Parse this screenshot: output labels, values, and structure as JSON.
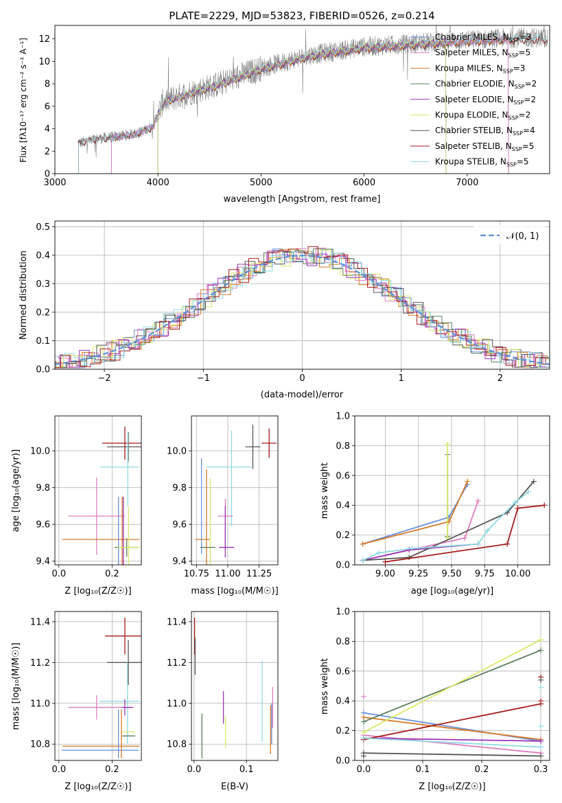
{
  "colors": {
    "chabrier_miles": "#6a8fd8",
    "salpeter_miles": "#e07bbf",
    "kroupa_miles": "#d87a2a",
    "chabrier_elodie": "#5d7f5d",
    "salpeter_elodie": "#9b34b8",
    "kroupa_elodie": "#d9e86a",
    "chabrier_stelib": "#555555",
    "salpeter_stelib": "#a31a1a",
    "kroupa_stelib": "#8fd9e0",
    "data_spectrum": "#808080"
  },
  "chart_data": [
    {
      "id": "spectrum",
      "type": "line",
      "title": "PLATE=2229, MJD=53823, FIBERID=0526, z=0.214",
      "xlabel": "wavelength [Angstrom, rest frame]",
      "ylabel": "Flux [fλ10⁻¹⁷ erg cm⁻² s⁻¹ A⁻¹]",
      "xlim": [
        3000,
        7800
      ],
      "ylim": [
        0,
        13.2
      ],
      "xticks": [
        "3000",
        "4000",
        "5000",
        "6000",
        "7000"
      ],
      "yticks": [
        "0",
        "2",
        "4",
        "6",
        "8",
        "10",
        "12"
      ],
      "legend_position": "right",
      "legend": [
        {
          "label": "Chabrier MILES, N",
          "sub": "SSP",
          "suffix": "=3",
          "color": "chabrier_miles"
        },
        {
          "label": "Salpeter MILES, N",
          "sub": "SSP",
          "suffix": "=5",
          "color": "salpeter_miles"
        },
        {
          "label": "Kroupa MILES, N",
          "sub": "SSP",
          "suffix": "=3",
          "color": "kroupa_miles"
        },
        {
          "label": "Chabrier ELODIE, N",
          "sub": "SSP",
          "suffix": "=2",
          "color": "chabrier_elodie"
        },
        {
          "label": "Salpeter ELODIE, N",
          "sub": "SSP",
          "suffix": "=2",
          "color": "salpeter_elodie"
        },
        {
          "label": "Kroupa ELODIE, N",
          "sub": "SSP",
          "suffix": "=2",
          "color": "kroupa_elodie"
        },
        {
          "label": "Chabrier STELIB, N",
          "sub": "SSP",
          "suffix": "=4",
          "color": "chabrier_stelib"
        },
        {
          "label": "Salpeter STELIB, N",
          "sub": "SSP",
          "suffix": "=5",
          "color": "salpeter_stelib"
        },
        {
          "label": "Kroupa STELIB, N",
          "sub": "SSP",
          "suffix": "=5",
          "color": "kroupa_stelib"
        }
      ],
      "continuum_anchors": [
        [
          3220,
          2.7
        ],
        [
          3400,
          3.1
        ],
        [
          3600,
          3.3
        ],
        [
          3800,
          3.6
        ],
        [
          3950,
          4.2
        ],
        [
          4050,
          6.4
        ],
        [
          4300,
          7.2
        ],
        [
          4600,
          8.0
        ],
        [
          5000,
          9.4
        ],
        [
          5500,
          10.6
        ],
        [
          6000,
          11.3
        ],
        [
          6500,
          11.6
        ],
        [
          7000,
          11.9
        ],
        [
          7500,
          12.1
        ]
      ],
      "model_starts": {
        "salpeter_stelib": 3230,
        "kroupa_stelib": 3230,
        "chabrier_stelib": 3230,
        "kroupa_miles": 3550,
        "salpeter_miles": 3550,
        "chabrier_miles": 3550,
        "kroupa_elodie": 4000,
        "salpeter_elodie": 4000,
        "chabrier_elodie": 4000
      }
    },
    {
      "id": "residuals",
      "type": "step",
      "xlabel": "(data-model)/error",
      "ylabel": "Normed distribution",
      "xlim": [
        -2.5,
        2.5
      ],
      "ylim": [
        0,
        0.52
      ],
      "xticks": [
        "−2",
        "−1",
        "0",
        "1",
        "2"
      ],
      "yticks": [
        "0.0",
        "0.1",
        "0.2",
        "0.3",
        "0.4",
        "0.5"
      ],
      "legend_position": "upper-right",
      "normal_label": "𝒩(0, 1)",
      "normal_color": "#5b8fd8"
    },
    {
      "id": "z-age",
      "type": "errorbar",
      "xlabel": "Z [log₁₀(Z/Z☉)]",
      "ylabel": "age  [log₁₀(age/yr)]",
      "xlim": [
        -0.015,
        0.31
      ],
      "ylim": [
        9.38,
        10.19
      ],
      "xticks": [
        0.0,
        0.2
      ],
      "yticks": [
        9.4,
        9.6,
        9.8,
        10.0
      ],
      "points": [
        {
          "x": 0.248,
          "xerr": 0.085,
          "y": 10.042,
          "yerr": 0.09,
          "color": "salpeter_stelib"
        },
        {
          "x": 0.261,
          "xerr": 0.08,
          "y": 10.022,
          "yerr": 0.08,
          "color": "chabrier_stelib"
        },
        {
          "x": 0.255,
          "xerr": 0.045,
          "y": 9.475,
          "yerr": 0.05,
          "color": "chabrier_elodie"
        },
        {
          "x": 0.228,
          "xerr": 0.075,
          "y": 9.912,
          "yerr": 0.0,
          "color": "kroupa_stelib"
        },
        {
          "x": 0.259,
          "xerr": 0.0,
          "y": 9.9,
          "yerr": 0.2,
          "color": "kroupa_stelib"
        },
        {
          "x": 0.142,
          "xerr": 0.105,
          "y": 9.645,
          "yerr": 0.21,
          "color": "salpeter_miles"
        },
        {
          "x": 0.158,
          "xerr": 0.145,
          "y": 9.518,
          "yerr": 0.0,
          "color": "kroupa_miles"
        },
        {
          "x": 0.224,
          "xerr": 0.0,
          "y": 9.55,
          "yerr": 0.2,
          "color": "chabrier_miles"
        },
        {
          "x": 0.238,
          "xerr": 0.0,
          "y": 9.55,
          "yerr": 0.2,
          "color": "kroupa_miles"
        },
        {
          "x": 0.242,
          "xerr": 0.0,
          "y": 9.55,
          "yerr": 0.2,
          "color": "salpeter_elodie"
        },
        {
          "x": 0.262,
          "xerr": 0.04,
          "y": 9.475,
          "yerr": 0.22,
          "color": "kroupa_elodie"
        }
      ]
    },
    {
      "id": "mass-age",
      "type": "errorbar",
      "xlabel": "mass [log₁₀(M/M☉)]",
      "ylabel": "",
      "xlim": [
        10.71,
        11.4
      ],
      "ylim": [
        9.38,
        10.19
      ],
      "xticks": [
        10.75,
        11.0,
        11.25
      ],
      "yticks": [
        9.4,
        9.6,
        9.8,
        10.0
      ],
      "points": [
        {
          "x": 11.33,
          "xerr": 0.06,
          "y": 10.042,
          "yerr": 0.08,
          "color": "salpeter_stelib"
        },
        {
          "x": 11.2,
          "xerr": 0.06,
          "y": 10.022,
          "yerr": 0.12,
          "color": "chabrier_stelib"
        },
        {
          "x": 11.01,
          "xerr": 0.18,
          "y": 9.912,
          "yerr": 0.0,
          "color": "kroupa_stelib"
        },
        {
          "x": 11.03,
          "xerr": 0.0,
          "y": 9.85,
          "yerr": 0.26,
          "color": "kroupa_stelib"
        },
        {
          "x": 10.98,
          "xerr": 0.06,
          "y": 9.645,
          "yerr": 0.0,
          "color": "salpeter_miles"
        },
        {
          "x": 10.98,
          "xerr": 0.0,
          "y": 9.6,
          "yerr": 0.14,
          "color": "salpeter_miles"
        },
        {
          "x": 10.79,
          "xerr": 0.0,
          "y": 9.7,
          "yerr": 0.26,
          "color": "chabrier_miles"
        },
        {
          "x": 10.8,
          "xerr": 0.06,
          "y": 9.518,
          "yerr": 0.0,
          "color": "kroupa_miles"
        },
        {
          "x": 10.83,
          "xerr": 0.0,
          "y": 9.6,
          "yerr": 0.3,
          "color": "kroupa_miles"
        },
        {
          "x": 10.86,
          "xerr": 0.0,
          "y": 9.6,
          "yerr": 0.25,
          "color": "kroupa_elodie"
        },
        {
          "x": 10.84,
          "xerr": 0.06,
          "y": 9.475,
          "yerr": 0.0,
          "color": "chabrier_elodie"
        },
        {
          "x": 10.99,
          "xerr": 0.06,
          "y": 9.475,
          "yerr": 0.0,
          "color": "salpeter_elodie"
        },
        {
          "x": 10.98,
          "xerr": 0.0,
          "y": 9.56,
          "yerr": 0.14,
          "color": "salpeter_elodie"
        }
      ]
    },
    {
      "id": "age-weight",
      "type": "line",
      "xlabel": "age  [log₁₀(age/yr)]",
      "ylabel": "mass weight",
      "xlim": [
        8.77,
        10.24
      ],
      "ylim": [
        0,
        1.0
      ],
      "xticks": [
        9.0,
        9.25,
        9.5,
        9.75,
        10.0
      ],
      "yticks": [
        0.0,
        0.2,
        0.4,
        0.6,
        0.8,
        1.0
      ],
      "series": [
        {
          "color": "chabrier_miles",
          "points": [
            [
              8.83,
              0.14
            ],
            [
              9.48,
              0.32
            ],
            [
              9.62,
              0.54
            ]
          ]
        },
        {
          "color": "kroupa_miles",
          "points": [
            [
              8.83,
              0.14
            ],
            [
              9.48,
              0.29
            ],
            [
              9.62,
              0.56
            ]
          ]
        },
        {
          "color": "salpeter_miles",
          "points": [
            [
              8.83,
              0.03
            ],
            [
              9.6,
              0.18
            ],
            [
              9.7,
              0.43
            ]
          ]
        },
        {
          "color": "chabrier_elodie",
          "points": [
            [
              9.47,
              0.19
            ],
            [
              9.47,
              0.74
            ]
          ]
        },
        {
          "color": "kroupa_elodie",
          "points": [
            [
              9.47,
              0.18
            ],
            [
              9.47,
              0.81
            ]
          ]
        },
        {
          "color": "salpeter_elodie",
          "points": [
            [
              8.83,
              0.03
            ],
            [
              9.18,
              0.1
            ],
            [
              9.7,
              0.14
            ]
          ]
        },
        {
          "color": "chabrier_stelib",
          "points": [
            [
              8.83,
              0.03
            ],
            [
              9.18,
              0.05
            ],
            [
              9.92,
              0.35
            ],
            [
              10.12,
              0.56
            ]
          ]
        },
        {
          "color": "salpeter_stelib",
          "points": [
            [
              9.0,
              0.02
            ],
            [
              9.92,
              0.14
            ],
            [
              10.0,
              0.38
            ],
            [
              10.2,
              0.4
            ]
          ]
        },
        {
          "color": "kroupa_stelib",
          "points": [
            [
              8.83,
              0.03
            ],
            [
              8.95,
              0.08
            ],
            [
              9.2,
              0.11
            ],
            [
              9.7,
              0.14
            ],
            [
              9.77,
              0.23
            ],
            [
              9.98,
              0.42
            ],
            [
              10.08,
              0.49
            ]
          ]
        }
      ]
    },
    {
      "id": "z-mass",
      "type": "errorbar",
      "xlabel": "Z [log₁₀(Z/Z☉)]",
      "ylabel": "mass [log₁₀(M/M☉)]",
      "xlim": [
        -0.015,
        0.31
      ],
      "ylim": [
        10.72,
        11.45
      ],
      "xticks": [
        0.0,
        0.2
      ],
      "yticks": [
        10.8,
        11.0,
        11.2,
        11.4
      ],
      "points": [
        {
          "x": 0.248,
          "xerr": 0.075,
          "y": 11.33,
          "yerr": 0.09,
          "color": "salpeter_stelib"
        },
        {
          "x": 0.261,
          "xerr": 0.08,
          "y": 11.2,
          "yerr": 0.11,
          "color": "chabrier_stelib"
        },
        {
          "x": 0.228,
          "xerr": 0.075,
          "y": 11.01,
          "yerr": 0.0,
          "color": "kroupa_stelib"
        },
        {
          "x": 0.258,
          "xerr": 0.0,
          "y": 11.0,
          "yerr": 0.2,
          "color": "kroupa_stelib"
        },
        {
          "x": 0.142,
          "xerr": 0.105,
          "y": 10.98,
          "yerr": 0.06,
          "color": "salpeter_miles"
        },
        {
          "x": 0.158,
          "xerr": 0.145,
          "y": 10.79,
          "yerr": 0.0,
          "color": "kroupa_miles"
        },
        {
          "x": 0.155,
          "xerr": 0.145,
          "y": 10.77,
          "yerr": 0.0,
          "color": "chabrier_miles"
        },
        {
          "x": 0.224,
          "xerr": 0.0,
          "y": 10.85,
          "yerr": 0.12,
          "color": "chabrier_miles"
        },
        {
          "x": 0.235,
          "xerr": 0.0,
          "y": 10.85,
          "yerr": 0.12,
          "color": "kroupa_miles"
        },
        {
          "x": 0.262,
          "xerr": 0.025,
          "y": 10.86,
          "yerr": 0.0,
          "color": "kroupa_elodie"
        },
        {
          "x": 0.262,
          "xerr": 0.025,
          "y": 10.84,
          "yerr": 0.0,
          "color": "chabrier_elodie"
        },
        {
          "x": 0.258,
          "xerr": 0.022,
          "y": 10.98,
          "yerr": 0.0,
          "color": "salpeter_elodie"
        },
        {
          "x": 0.248,
          "xerr": 0.0,
          "y": 10.98,
          "yerr": 0.04,
          "color": "salpeter_elodie"
        }
      ]
    },
    {
      "id": "ebv-mass",
      "type": "errorbar",
      "xlabel": "E(B-V)",
      "ylabel": "",
      "xlim": [
        -0.005,
        0.16
      ],
      "ylim": [
        10.72,
        11.45
      ],
      "xticks": [
        0.0,
        0.1
      ],
      "yticks": [
        10.8,
        11.0,
        11.2,
        11.4
      ],
      "points": [
        {
          "x": 0.001,
          "xerr": 0.0,
          "y": 11.33,
          "yerr": 0.09,
          "color": "salpeter_stelib"
        },
        {
          "x": 0.002,
          "xerr": 0.0,
          "y": 11.23,
          "yerr": 0.09,
          "color": "chabrier_stelib"
        },
        {
          "x": 0.015,
          "xerr": 0.0,
          "y": 10.84,
          "yerr": 0.11,
          "color": "chabrier_elodie"
        },
        {
          "x": 0.056,
          "xerr": 0.0,
          "y": 10.98,
          "yerr": 0.08,
          "color": "salpeter_elodie"
        },
        {
          "x": 0.06,
          "xerr": 0.0,
          "y": 10.86,
          "yerr": 0.08,
          "color": "kroupa_elodie"
        },
        {
          "x": 0.13,
          "xerr": 0.0,
          "y": 11.01,
          "yerr": 0.2,
          "color": "kroupa_stelib"
        },
        {
          "x": 0.146,
          "xerr": 0.0,
          "y": 10.87,
          "yerr": 0.12,
          "color": "kroupa_miles"
        },
        {
          "x": 0.148,
          "xerr": 0.0,
          "y": 10.9,
          "yerr": 0.1,
          "color": "chabrier_miles"
        },
        {
          "x": 0.15,
          "xerr": 0.0,
          "y": 10.98,
          "yerr": 0.1,
          "color": "salpeter_miles"
        }
      ]
    },
    {
      "id": "z-weight",
      "type": "line",
      "xlabel": "Z [log₁₀(Z/Z☉)]",
      "ylabel": "mass weight",
      "xlim": [
        -0.015,
        0.315
      ],
      "ylim": [
        0,
        1.0
      ],
      "xticks": [
        0.0,
        0.1,
        0.2,
        0.3
      ],
      "yticks": [
        0.0,
        0.2,
        0.4,
        0.6,
        0.8,
        1.0
      ],
      "series": [
        {
          "color": "chabrier_miles",
          "points": [
            [
              0.0,
              0.32
            ],
            [
              0.3,
              0.13
            ]
          ]
        },
        {
          "color": "kroupa_miles",
          "points": [
            [
              0.0,
              0.29
            ],
            [
              0.3,
              0.14
            ]
          ]
        },
        {
          "color": "salpeter_miles",
          "points": [
            [
              0.0,
              0.17
            ],
            [
              0.3,
              0.05
            ]
          ]
        },
        {
          "color": "chabrier_elodie",
          "points": [
            [
              0.0,
              0.26
            ],
            [
              0.3,
              0.74
            ]
          ]
        },
        {
          "color": "kroupa_elodie",
          "points": [
            [
              0.0,
              0.19
            ],
            [
              0.3,
              0.81
            ]
          ]
        },
        {
          "color": "salpeter_elodie",
          "points": [
            [
              0.0,
              0.15
            ],
            [
              0.3,
              0.13
            ]
          ]
        },
        {
          "color": "chabrier_stelib",
          "points": [
            [
              0.0,
              0.05
            ],
            [
              0.3,
              0.03
            ]
          ]
        },
        {
          "color": "salpeter_stelib",
          "points": [
            [
              0.0,
              0.14
            ],
            [
              0.3,
              0.38
            ]
          ]
        },
        {
          "color": "kroupa_stelib",
          "points": [
            [
              0.0,
              0.15
            ],
            [
              0.3,
              0.09
            ]
          ]
        }
      ],
      "markers": [
        {
          "x": 0.0,
          "y": 0.43,
          "color": "salpeter_miles"
        },
        {
          "x": 0.0,
          "y": 0.03,
          "color": "chabrier_stelib"
        },
        {
          "x": 0.3,
          "y": 0.56,
          "color": "salpeter_stelib"
        },
        {
          "x": 0.3,
          "y": 0.54,
          "color": "chabrier_stelib"
        },
        {
          "x": 0.3,
          "y": 0.49,
          "color": "kroupa_stelib"
        },
        {
          "x": 0.3,
          "y": 0.4,
          "color": "salpeter_stelib"
        },
        {
          "x": 0.3,
          "y": 0.23,
          "color": "kroupa_stelib"
        }
      ]
    }
  ]
}
